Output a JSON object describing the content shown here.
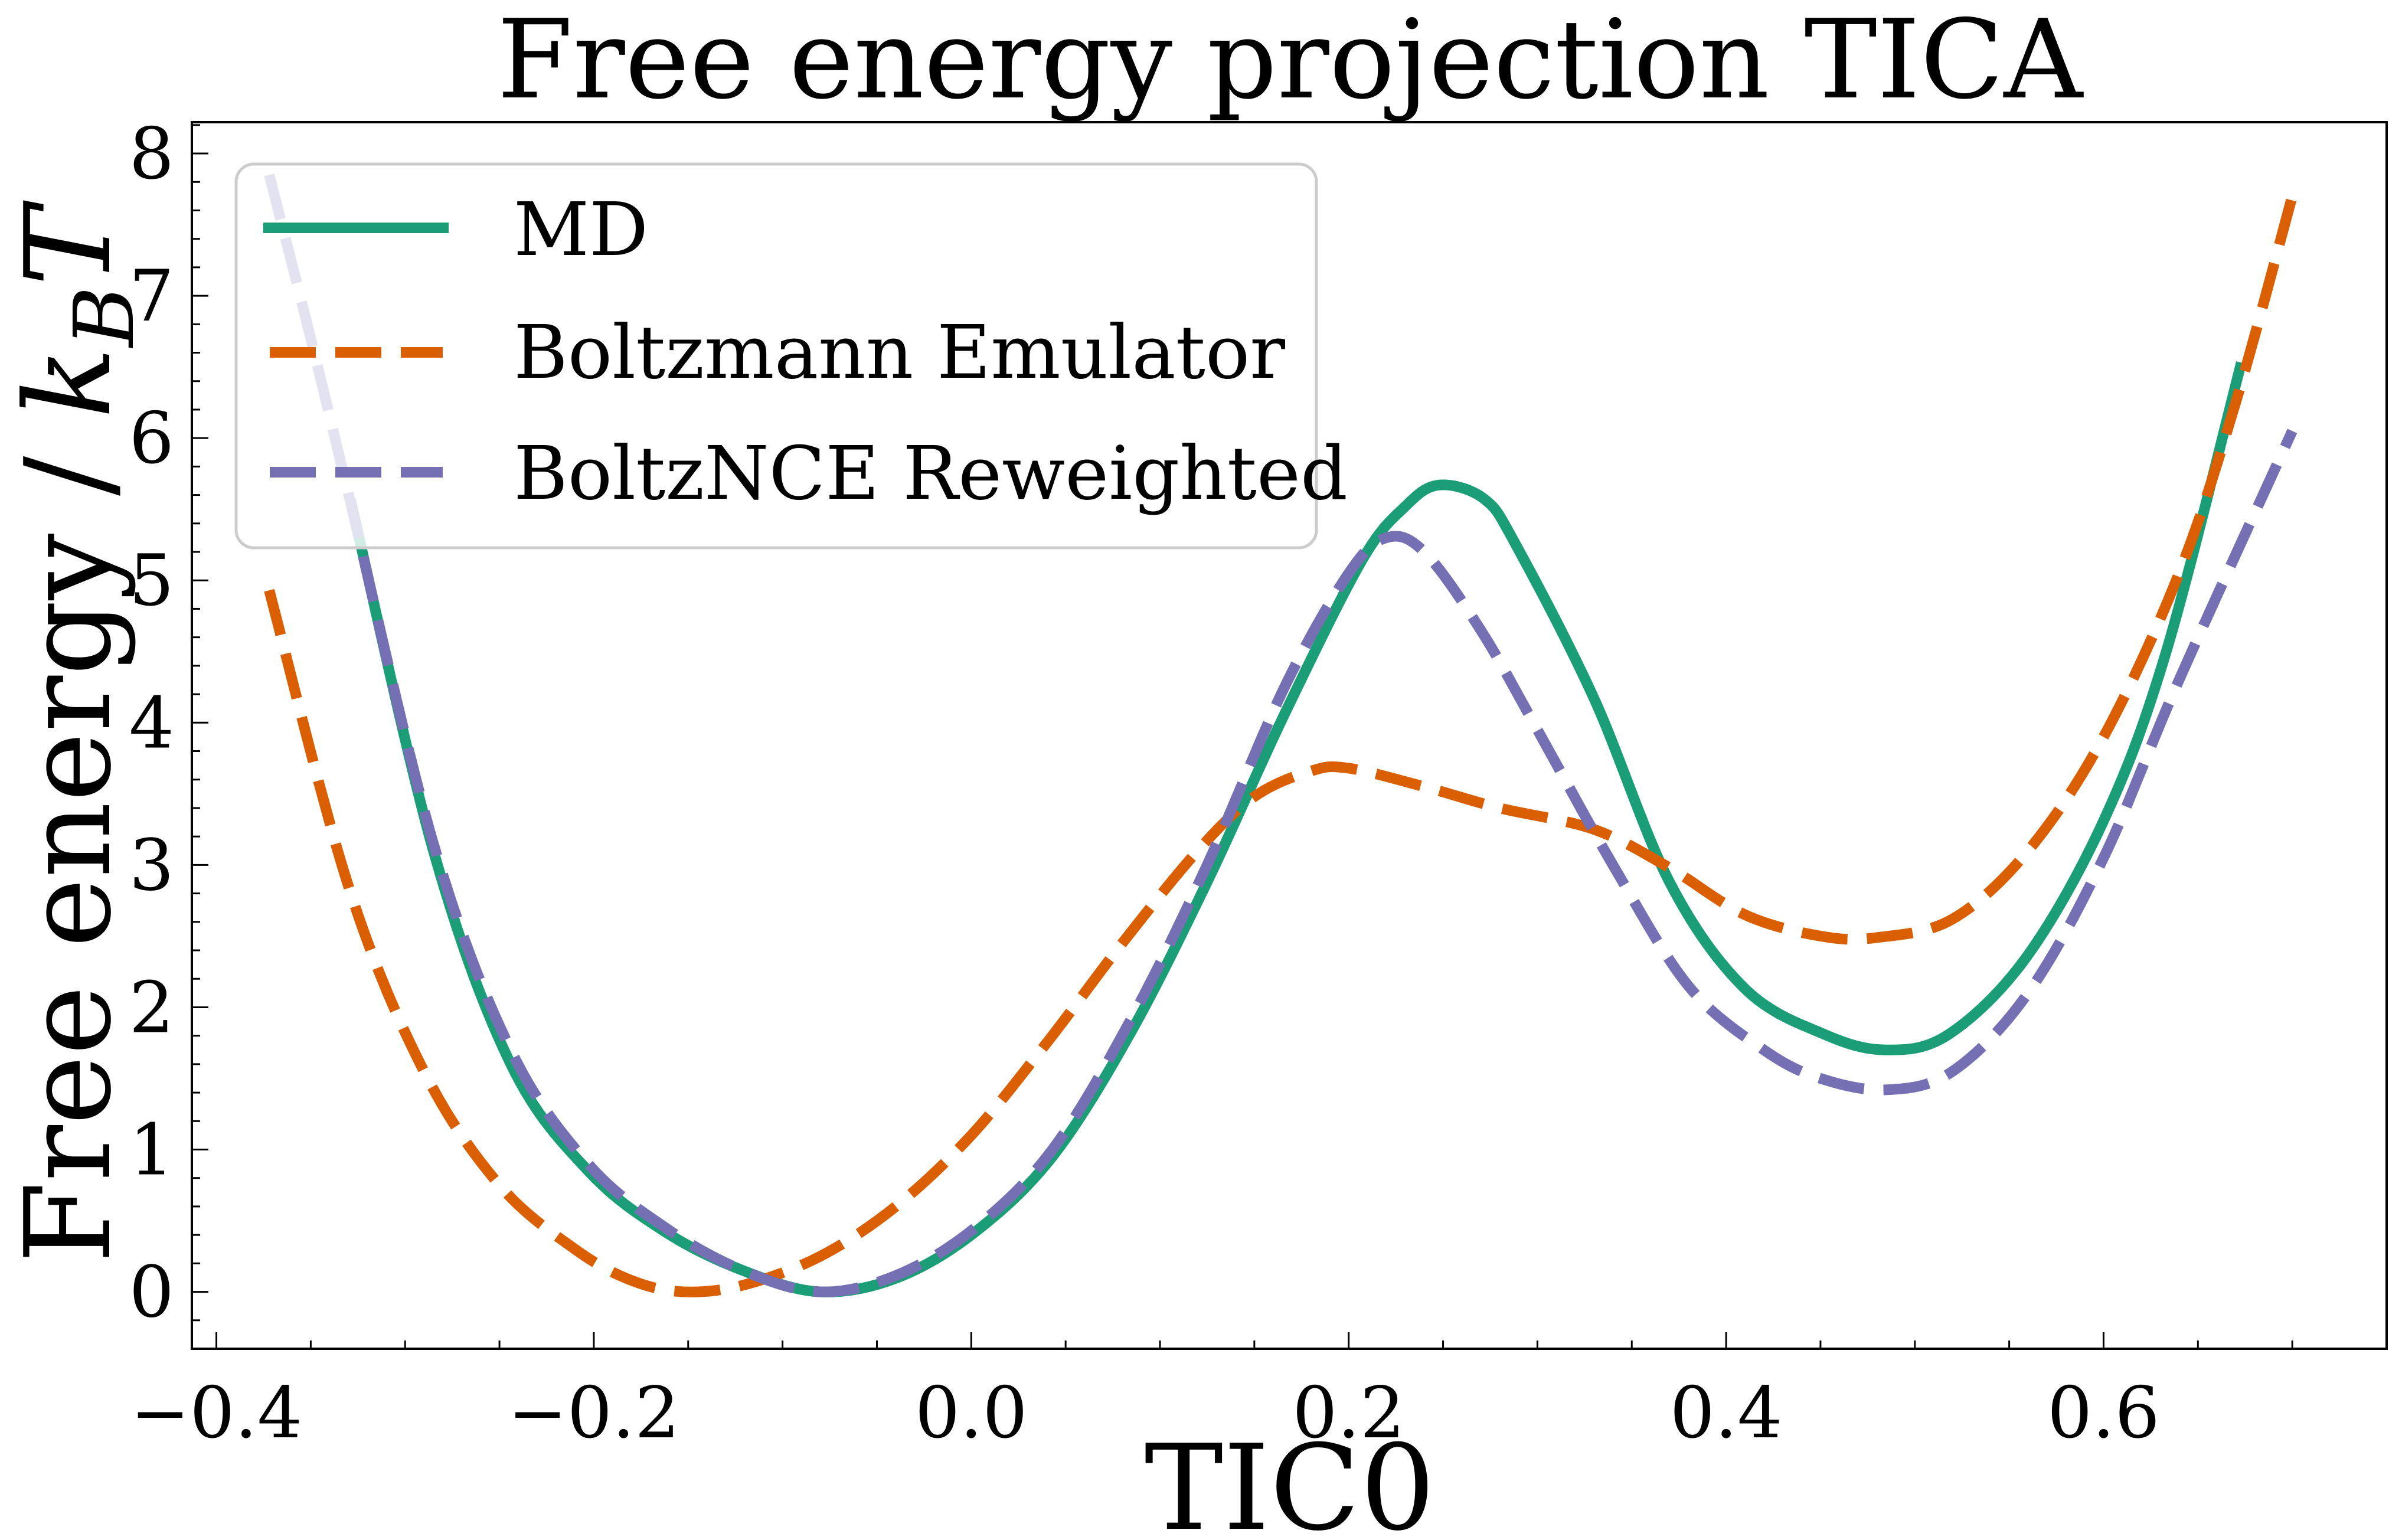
{
  "chart_data": {
    "type": "line",
    "title": "Free energy projection TICA",
    "xlabel": "TIC0",
    "ylabel": "Free energy / k_B T",
    "ylabel_parts": {
      "main": "Free energy / ",
      "k": "k",
      "sub": "B",
      "T": "T"
    },
    "xlim": [
      -0.413,
      0.75
    ],
    "ylim": [
      -0.4,
      8.22
    ],
    "xticks": [
      -0.4,
      -0.2,
      0.0,
      0.2,
      0.4,
      0.6
    ],
    "xtick_labels": [
      "−0.4",
      "−0.2",
      "0.0",
      "0.2",
      "0.4",
      "0.6"
    ],
    "yticks": [
      0,
      1,
      2,
      3,
      4,
      5,
      6,
      7,
      8
    ],
    "ytick_labels": [
      "0",
      "1",
      "2",
      "3",
      "4",
      "5",
      "6",
      "7",
      "8"
    ],
    "grid": false,
    "legend_position": "top-left",
    "series": [
      {
        "name": "MD",
        "color": "#1b9e77",
        "style": "solid",
        "x": [
          -0.329,
          -0.285,
          -0.244,
          -0.203,
          -0.162,
          -0.121,
          -0.08,
          -0.039,
          0.002,
          0.043,
          0.084,
          0.125,
          0.166,
          0.207,
          0.23,
          0.248,
          0.272,
          0.289,
          0.33,
          0.37,
          0.41,
          0.452,
          0.485,
          0.518,
          0.559,
          0.6,
          0.633,
          0.673
        ],
        "y": [
          5.57,
          3.1,
          1.6,
          0.85,
          0.42,
          0.15,
          0.0,
          0.1,
          0.42,
          0.95,
          1.81,
          2.88,
          4.06,
          5.14,
          5.52,
          5.67,
          5.57,
          5.24,
          4.17,
          2.88,
          2.13,
          1.81,
          1.7,
          1.81,
          2.35,
          3.31,
          4.49,
          6.53
        ]
      },
      {
        "name": "Boltzmann Emulator",
        "color": "#d95f02",
        "style": "dashed",
        "x": [
          -0.372,
          -0.33,
          -0.29,
          -0.25,
          -0.21,
          -0.18,
          -0.152,
          -0.12,
          -0.08,
          -0.04,
          0.0,
          0.04,
          0.08,
          0.12,
          0.15,
          0.18,
          0.2,
          0.24,
          0.28,
          0.33,
          0.37,
          0.41,
          0.45,
          0.48,
          0.52,
          0.56,
          0.6,
          0.64,
          0.67,
          0.7
        ],
        "y": [
          4.93,
          2.85,
          1.55,
          0.75,
          0.3,
          0.08,
          0.0,
          0.05,
          0.25,
          0.6,
          1.1,
          1.75,
          2.45,
          3.1,
          3.48,
          3.66,
          3.68,
          3.55,
          3.4,
          3.25,
          2.98,
          2.65,
          2.5,
          2.49,
          2.62,
          3.1,
          3.9,
          5.05,
          6.25,
          7.7
        ]
      },
      {
        "name": "BoltzNCE Reweighted",
        "color": "#7570b3",
        "style": "dashed",
        "x": [
          -0.372,
          -0.35,
          -0.329,
          -0.285,
          -0.244,
          -0.203,
          -0.162,
          -0.121,
          -0.08,
          -0.039,
          0.002,
          0.043,
          0.084,
          0.125,
          0.166,
          0.2,
          0.22,
          0.24,
          0.27,
          0.3,
          0.34,
          0.38,
          0.42,
          0.45,
          0.485,
          0.52,
          0.56,
          0.6,
          0.64,
          0.7
        ],
        "y": [
          7.85,
          6.7,
          5.55,
          3.15,
          1.7,
          0.9,
          0.45,
          0.15,
          0.0,
          0.12,
          0.45,
          1.0,
          1.9,
          3.0,
          4.25,
          5.05,
          5.3,
          5.2,
          4.65,
          3.95,
          3.0,
          2.15,
          1.7,
          1.5,
          1.42,
          1.55,
          2.1,
          3.05,
          4.3,
          6.05
        ]
      }
    ]
  }
}
